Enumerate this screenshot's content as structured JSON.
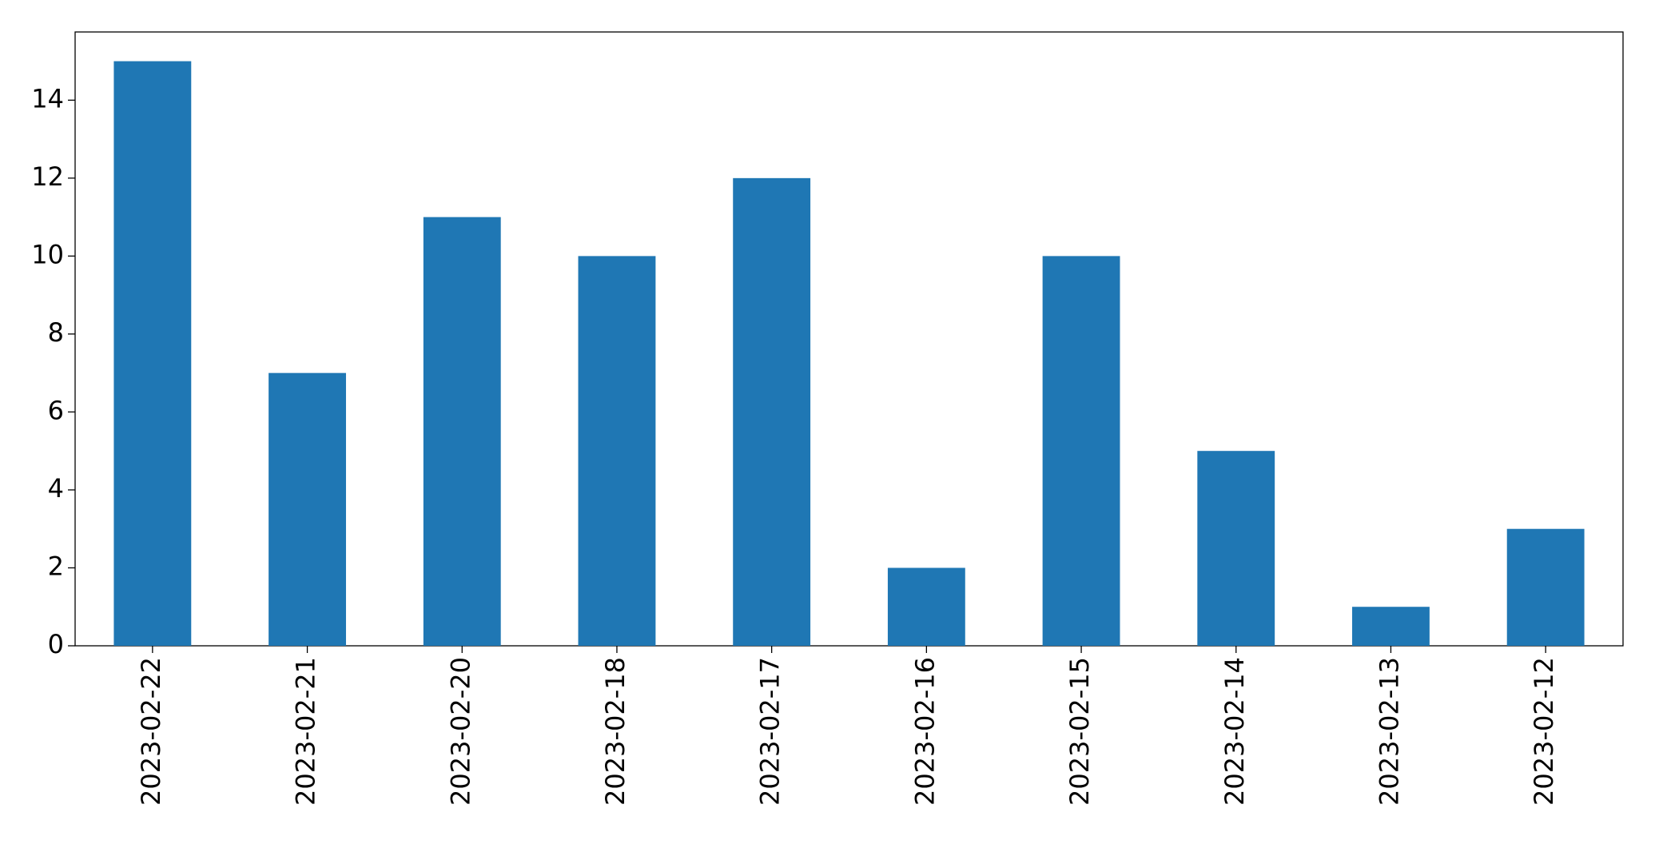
{
  "chart_data": {
    "type": "bar",
    "categories": [
      "2023-02-22",
      "2023-02-21",
      "2023-02-20",
      "2023-02-18",
      "2023-02-17",
      "2023-02-16",
      "2023-02-15",
      "2023-02-14",
      "2023-02-13",
      "2023-02-12"
    ],
    "values": [
      15,
      7,
      11,
      10,
      12,
      2,
      10,
      5,
      1,
      3
    ],
    "color": "#1f77b4",
    "ylim": [
      0,
      15.75
    ],
    "yticks": [
      0,
      2,
      4,
      6,
      8,
      10,
      12,
      14
    ],
    "grid": false
  }
}
